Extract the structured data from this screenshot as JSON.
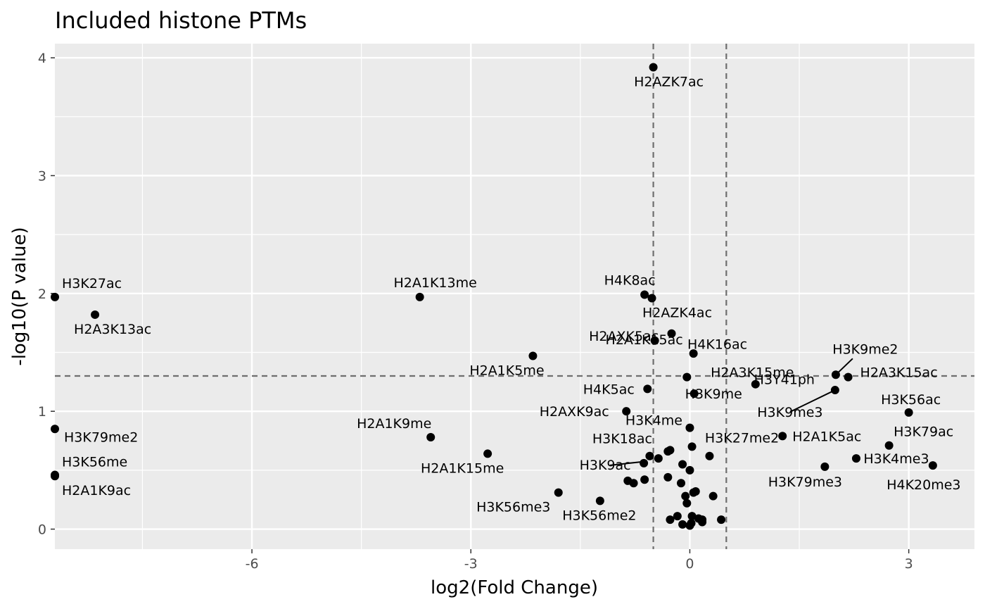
{
  "chart_data": {
    "type": "scatter",
    "title": "Included histone PTMs",
    "xlabel": "log2(Fold Change)",
    "ylabel": "-log10(P value)",
    "xlim": [
      -8.7,
      3.9
    ],
    "ylim": [
      -0.17,
      4.12
    ],
    "xticks": [
      -6,
      -3,
      0,
      3
    ],
    "yticks": [
      0,
      1,
      2,
      3,
      4
    ],
    "xtick_labels": [
      "-6",
      "-3",
      "0",
      "3"
    ],
    "ytick_labels": [
      "0",
      "1",
      "2",
      "3",
      "4"
    ],
    "grid": true,
    "background": "#ebebeb",
    "point_color": "#000000",
    "thresholds": {
      "x": [
        -0.5,
        0.5
      ],
      "y": 1.3
    },
    "points": [
      {
        "label": "H2AZK7ac",
        "x": -0.5,
        "y": 3.92
      },
      {
        "label": "H3K27ac",
        "x": -8.7,
        "y": 1.97
      },
      {
        "label": "H2A3K13ac",
        "x": -8.15,
        "y": 1.82
      },
      {
        "label": "H2A1K13me",
        "x": -3.7,
        "y": 1.97
      },
      {
        "label": "H4K8ac",
        "x": -0.62,
        "y": 1.99
      },
      {
        "label": "H2AZK4ac",
        "x": -0.52,
        "y": 1.96
      },
      {
        "label": "H4K16ac",
        "x": -0.25,
        "y": 1.66
      },
      {
        "label": "H2AXK5ac",
        "x": -0.48,
        "y": 1.6
      },
      {
        "label": "H2A1K5me",
        "x": -2.15,
        "y": 1.47
      },
      {
        "label": "H2A1K15ac",
        "x": 0.05,
        "y": 1.49
      },
      {
        "label": "H2A3K15me",
        "x": -0.04,
        "y": 1.29
      },
      {
        "label": "H3K9me2",
        "x": 2.0,
        "y": 1.31
      },
      {
        "label": "H2A3K15ac",
        "x": 2.17,
        "y": 1.29
      },
      {
        "label": "H3Y41ph",
        "x": 0.9,
        "y": 1.23
      },
      {
        "label": "H3K9me3",
        "x": 1.99,
        "y": 1.18
      },
      {
        "label": "H4K5ac",
        "x": -0.58,
        "y": 1.19
      },
      {
        "label": "H3K9me",
        "x": 0.06,
        "y": 1.15
      },
      {
        "label": "H3K56ac",
        "x": 3.0,
        "y": 0.99
      },
      {
        "label": "H2AXK9ac",
        "x": -0.87,
        "y": 1.0
      },
      {
        "label": "H3K4me",
        "x": 0.0,
        "y": 0.86
      },
      {
        "label": "H3K79me2",
        "x": -8.7,
        "y": 0.85
      },
      {
        "label": "H2A1K9me",
        "x": -3.55,
        "y": 0.78
      },
      {
        "label": "H2A1K5ac",
        "x": 1.27,
        "y": 0.79
      },
      {
        "label": "H3K79ac",
        "x": 2.73,
        "y": 0.71
      },
      {
        "label": "H3K18ac",
        "x": -0.27,
        "y": 0.67
      },
      {
        "label": "H3K27me2",
        "x": 0.03,
        "y": 0.7
      },
      {
        "label": "H2A1K15me",
        "x": -2.77,
        "y": 0.64
      },
      {
        "label": "H3K4me3",
        "x": 2.28,
        "y": 0.6
      },
      {
        "label": "H3K9ac",
        "x": -0.63,
        "y": 0.56
      },
      {
        "label": "H3K79me3",
        "x": 1.85,
        "y": 0.53
      },
      {
        "label": "H4K20me3",
        "x": 3.33,
        "y": 0.54
      },
      {
        "label": "H3K56me",
        "x": -8.7,
        "y": 0.46
      },
      {
        "label": "H2A1K9ac",
        "x": -8.7,
        "y": 0.45
      },
      {
        "label": "H3K56me3",
        "x": -1.8,
        "y": 0.31
      },
      {
        "label": "H3K56me2",
        "x": -1.23,
        "y": 0.24
      },
      {
        "label": "",
        "x": -0.3,
        "y": 0.66
      },
      {
        "label": "",
        "x": -0.55,
        "y": 0.62
      },
      {
        "label": "",
        "x": -0.43,
        "y": 0.6
      },
      {
        "label": "",
        "x": -0.1,
        "y": 0.55
      },
      {
        "label": "",
        "x": 0.0,
        "y": 0.5
      },
      {
        "label": "",
        "x": 0.27,
        "y": 0.62
      },
      {
        "label": "",
        "x": -0.3,
        "y": 0.44
      },
      {
        "label": "",
        "x": -0.62,
        "y": 0.42
      },
      {
        "label": "",
        "x": -0.85,
        "y": 0.41
      },
      {
        "label": "",
        "x": -0.77,
        "y": 0.39
      },
      {
        "label": "",
        "x": -0.12,
        "y": 0.39
      },
      {
        "label": "",
        "x": 0.05,
        "y": 0.31
      },
      {
        "label": "",
        "x": 0.08,
        "y": 0.32
      },
      {
        "label": "",
        "x": -0.06,
        "y": 0.28
      },
      {
        "label": "",
        "x": 0.32,
        "y": 0.28
      },
      {
        "label": "",
        "x": -0.04,
        "y": 0.22
      },
      {
        "label": "",
        "x": -0.17,
        "y": 0.11
      },
      {
        "label": "",
        "x": 0.03,
        "y": 0.11
      },
      {
        "label": "",
        "x": 0.12,
        "y": 0.09
      },
      {
        "label": "",
        "x": -0.27,
        "y": 0.08
      },
      {
        "label": "",
        "x": 0.17,
        "y": 0.08
      },
      {
        "label": "",
        "x": 0.43,
        "y": 0.08
      },
      {
        "label": "",
        "x": 0.17,
        "y": 0.06
      },
      {
        "label": "",
        "x": -0.1,
        "y": 0.04
      },
      {
        "label": "",
        "x": 0.0,
        "y": 0.03
      },
      {
        "label": "",
        "x": 0.02,
        "y": 0.05
      }
    ]
  }
}
